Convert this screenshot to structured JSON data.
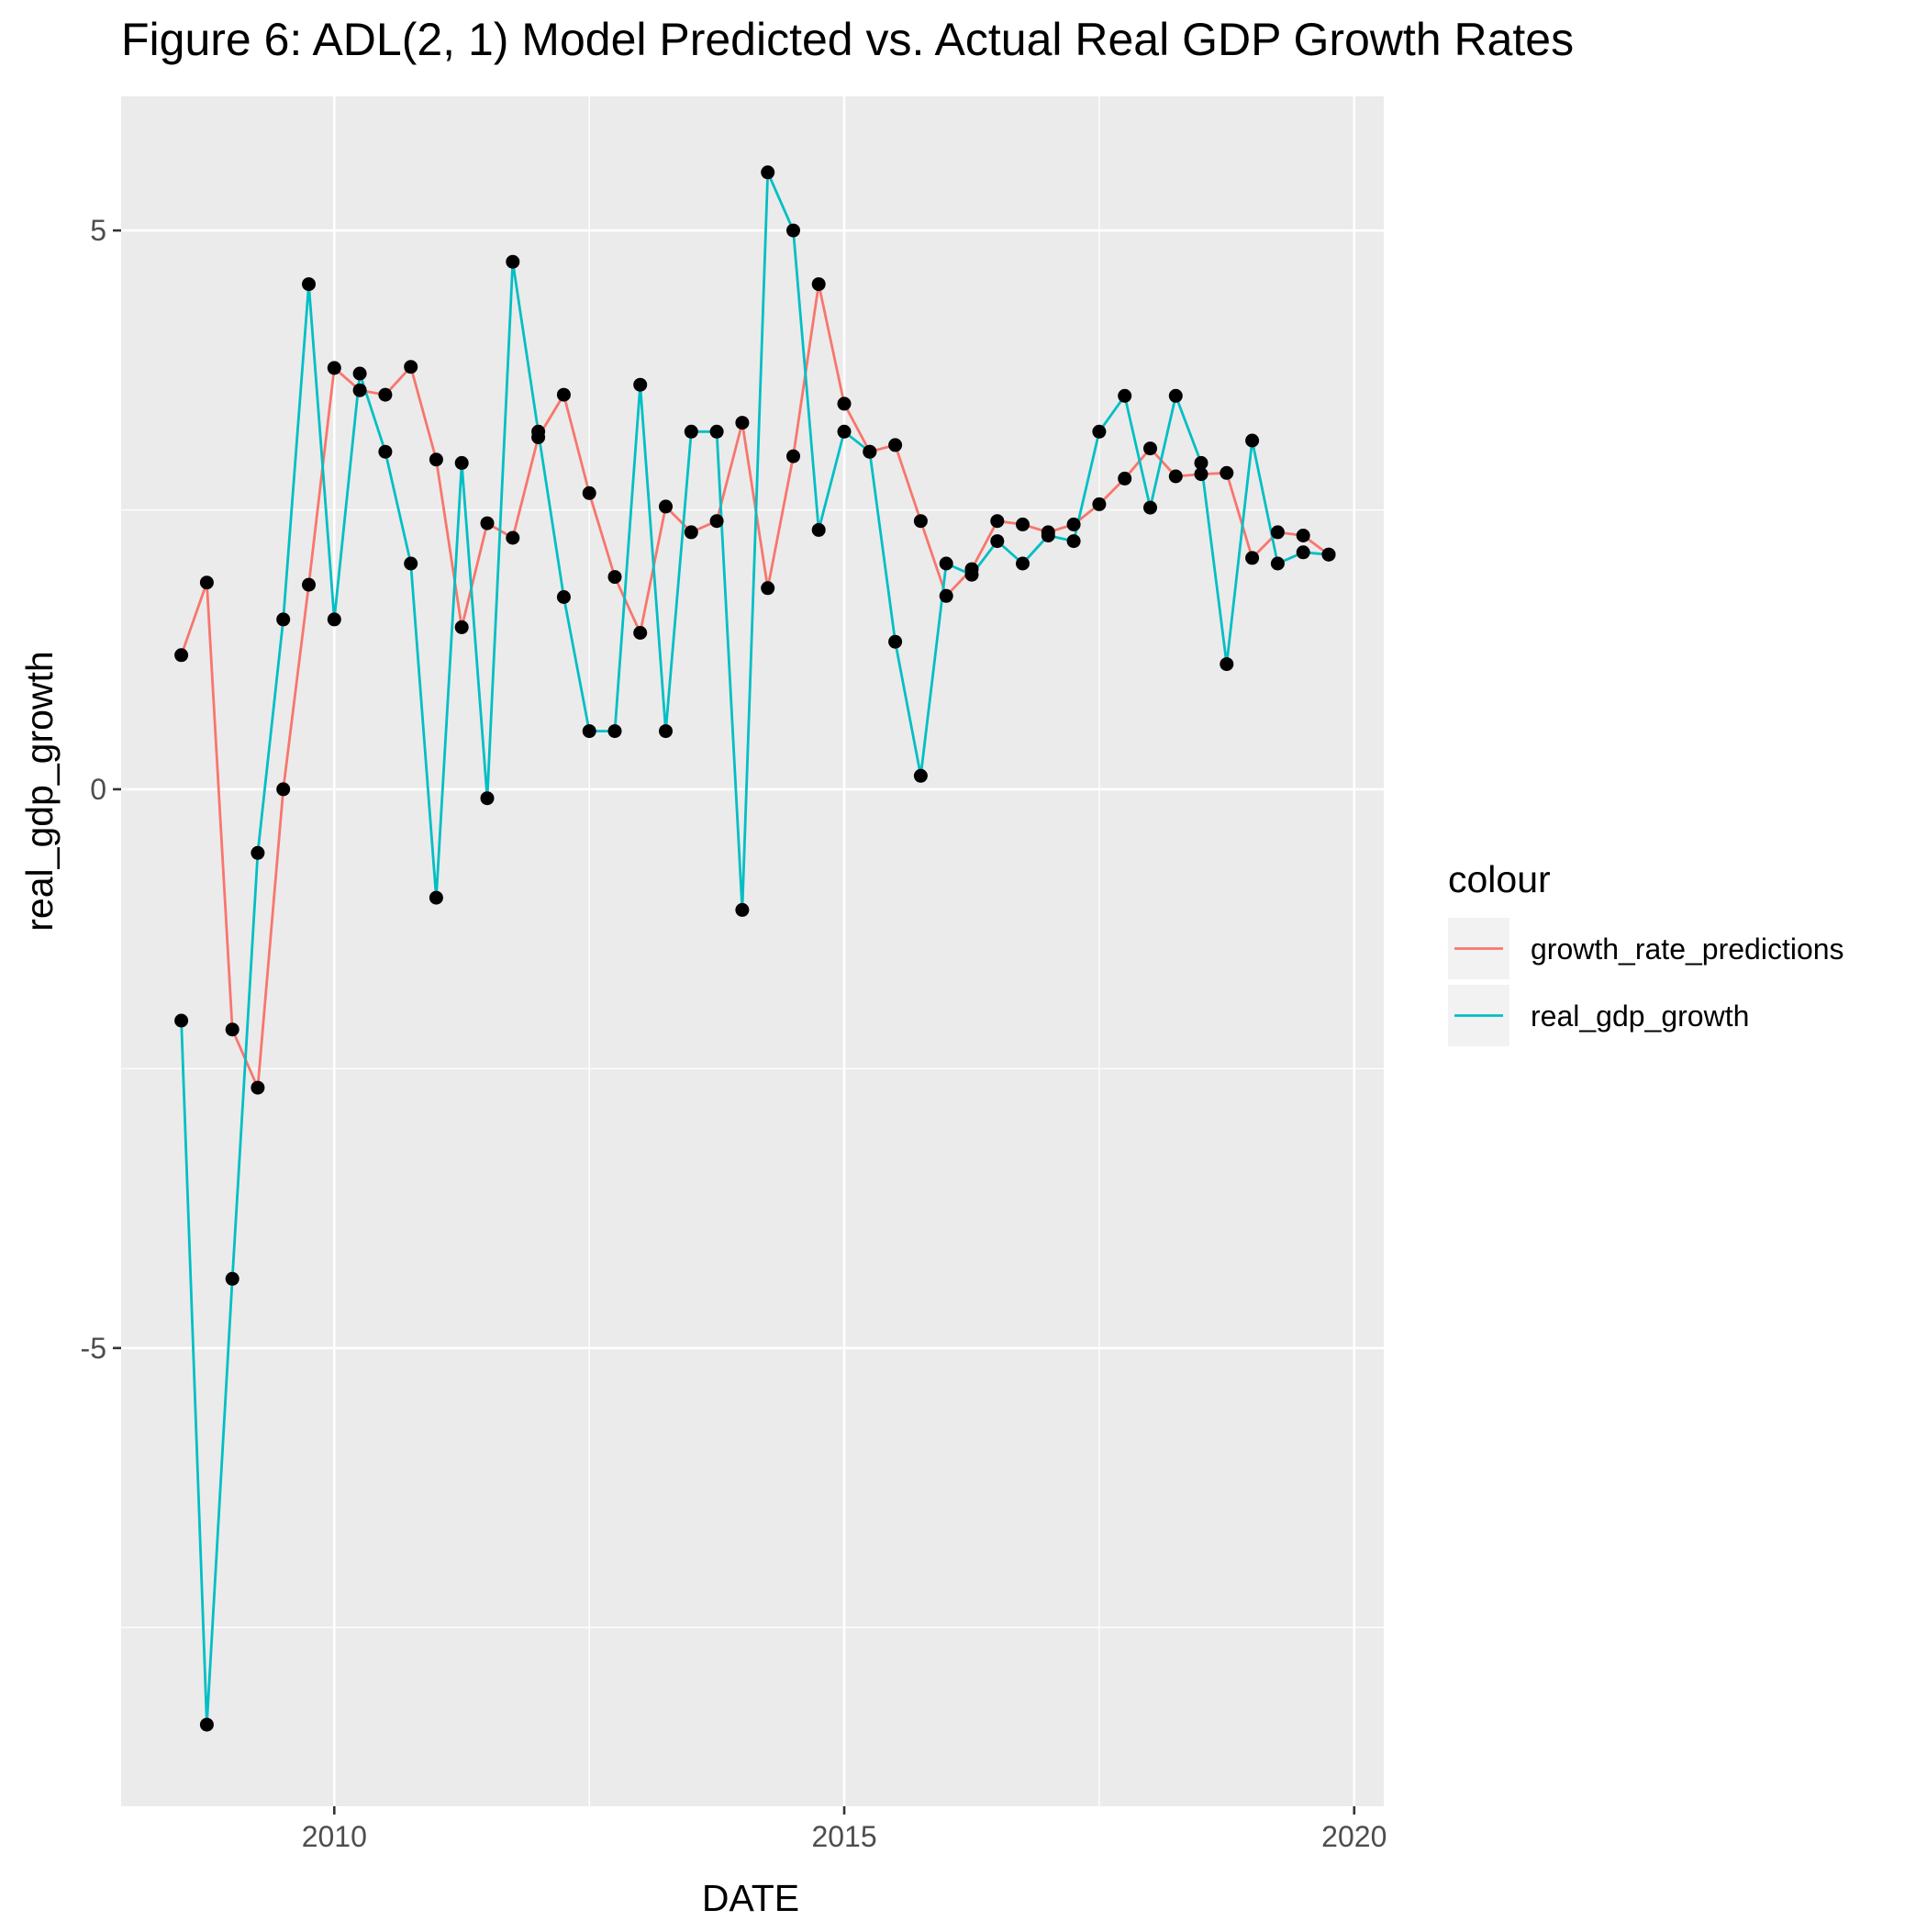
{
  "chart_data": {
    "type": "line",
    "title": "Figure 6: ADL(2, 1) Model Predicted vs. Actual Real GDP Growth Rates",
    "xlabel": "DATE",
    "ylabel": "real_gdp_growth",
    "xlim": [
      2007.91,
      2020.29
    ],
    "ylim": [
      -9.1,
      6.2
    ],
    "x_ticks": [
      2010,
      2015,
      2020
    ],
    "x_tick_labels": [
      "2010",
      "2015",
      "2020"
    ],
    "y_ticks": [
      -5,
      0,
      5
    ],
    "y_tick_labels": [
      "-5",
      "0",
      "5"
    ],
    "grid": true,
    "point_color": "#000000",
    "panel_background": "#EBEBEB",
    "legend": {
      "title": "colour",
      "position": "right",
      "entries": [
        {
          "label": "growth_rate_predictions",
          "color": "#F8766D"
        },
        {
          "label": "real_gdp_growth",
          "color": "#00BFC4"
        }
      ]
    },
    "x": [
      2008.5,
      2008.75,
      2009.0,
      2009.25,
      2009.5,
      2009.75,
      2010.0,
      2010.25,
      2010.5,
      2010.75,
      2011.0,
      2011.25,
      2011.5,
      2011.75,
      2012.0,
      2012.25,
      2012.5,
      2012.75,
      2013.0,
      2013.25,
      2013.5,
      2013.75,
      2014.0,
      2014.25,
      2014.5,
      2014.75,
      2015.0,
      2015.25,
      2015.5,
      2015.75,
      2016.0,
      2016.25,
      2016.5,
      2016.75,
      2017.0,
      2017.25,
      2017.5,
      2017.75,
      2018.0,
      2018.25,
      2018.5,
      2018.75,
      2019.0,
      2019.25,
      2019.5,
      2019.75
    ],
    "series": [
      {
        "name": "growth_rate_predictions",
        "color": "#F8766D",
        "values": [
          1.2,
          1.85,
          -2.15,
          -2.67,
          0.0,
          1.83,
          3.77,
          3.57,
          3.53,
          3.78,
          2.95,
          1.45,
          2.38,
          2.25,
          3.15,
          3.53,
          2.65,
          1.9,
          1.4,
          2.53,
          2.3,
          2.4,
          3.28,
          1.8,
          2.98,
          4.52,
          3.45,
          3.02,
          3.08,
          2.4,
          1.73,
          1.97,
          2.4,
          2.37,
          2.3,
          2.37,
          2.55,
          2.78,
          3.05,
          2.8,
          2.82,
          2.83,
          2.07,
          2.3,
          2.27,
          2.1
        ]
      },
      {
        "name": "real_gdp_growth",
        "color": "#00BFC4",
        "values": [
          -2.07,
          -8.37,
          -4.38,
          -0.57,
          1.52,
          4.52,
          1.52,
          3.72,
          3.02,
          2.02,
          -0.97,
          2.92,
          -0.08,
          4.72,
          3.2,
          1.72,
          0.52,
          0.52,
          3.62,
          0.52,
          3.2,
          3.2,
          -1.08,
          5.52,
          5.0,
          2.32,
          3.2,
          3.02,
          1.32,
          0.12,
          2.02,
          1.92,
          2.22,
          2.02,
          2.27,
          2.22,
          3.2,
          3.52,
          2.52,
          3.52,
          2.92,
          1.12,
          3.12,
          2.02,
          2.12,
          2.1
        ]
      }
    ]
  }
}
